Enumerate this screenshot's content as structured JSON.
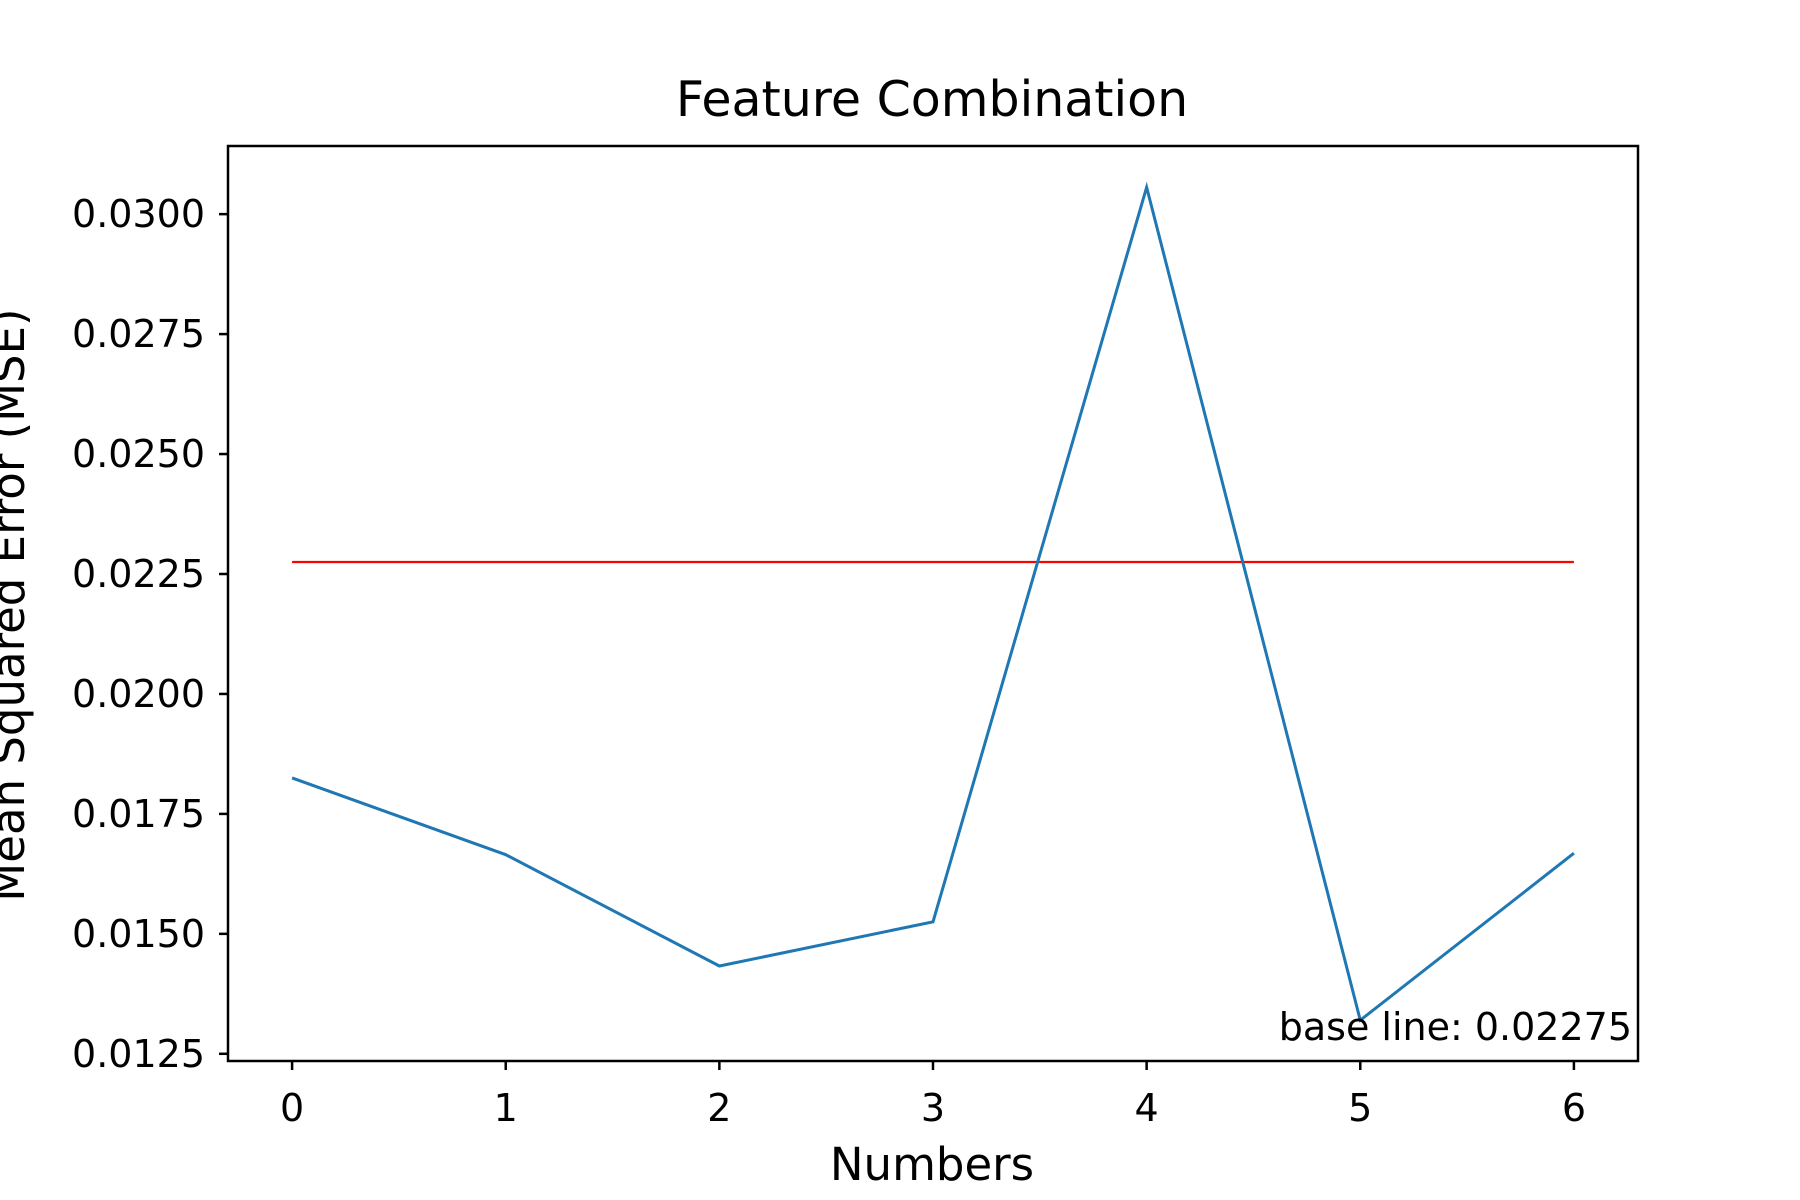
{
  "chart_data": {
    "type": "line",
    "title": "Feature Combination",
    "xlabel": "Numbers",
    "ylabel": "Mean Squared Error (MSE)",
    "x": [
      0,
      1,
      2,
      3,
      4,
      5,
      6
    ],
    "series": [
      {
        "values": [
          0.01825,
          0.01665,
          0.01433,
          0.01525,
          0.03056,
          0.0132,
          0.01668
        ],
        "color": "#1f77b4"
      }
    ],
    "baseline": {
      "value": 0.02275,
      "label": "base line: 0.02275",
      "color": "#ff0000"
    },
    "xlim": [
      -0.3,
      6.3
    ],
    "ylim": [
      0.01235,
      0.03142
    ],
    "xticks": [
      0,
      1,
      2,
      3,
      4,
      5,
      6
    ],
    "yticks": [
      0.0125,
      0.015,
      0.0175,
      0.02,
      0.0225,
      0.025,
      0.0275,
      0.03
    ],
    "ytick_labels": [
      "0.0125",
      "0.0150",
      "0.0175",
      "0.0200",
      "0.0225",
      "0.0250",
      "0.0275",
      "0.0300"
    ],
    "grid": false,
    "legend": "none"
  }
}
